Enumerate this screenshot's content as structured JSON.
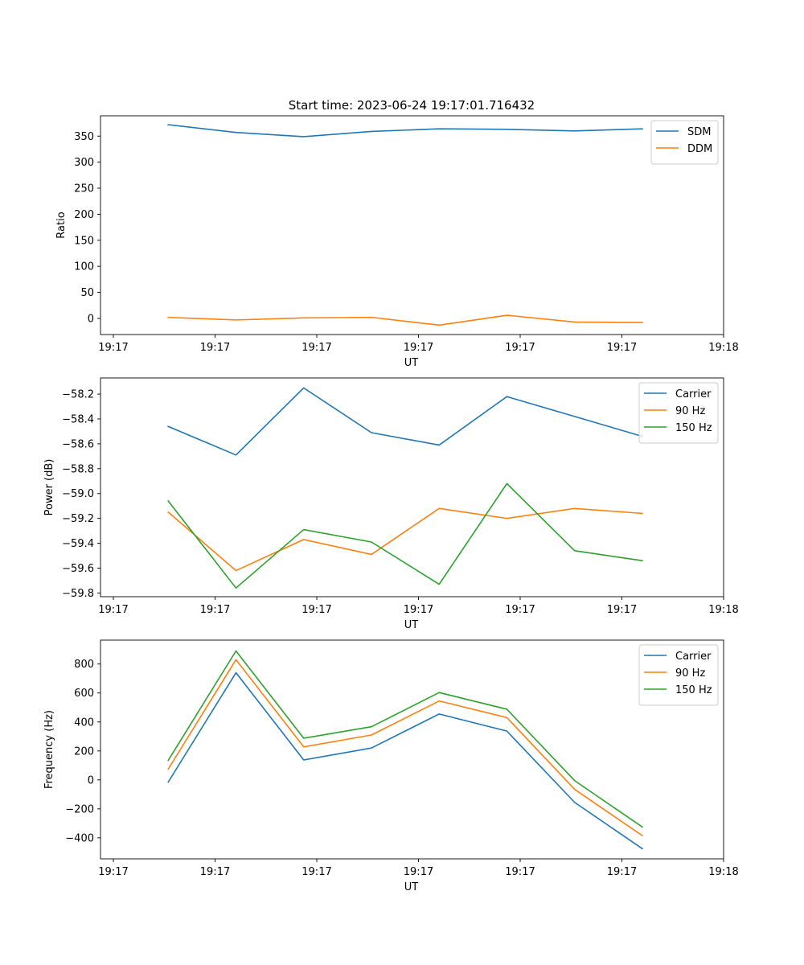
{
  "figure_title": "Start time: 2023-06-24 19:17:01.716432",
  "chart_data": [
    {
      "type": "line",
      "xlabel": "UT",
      "ylabel": "Ratio",
      "x_ticks": [
        "19:17",
        "19:17",
        "19:17",
        "19:17",
        "19:17",
        "19:17",
        "19:18"
      ],
      "x": [
        1,
        2,
        3,
        4,
        5,
        6,
        7,
        8
      ],
      "xlim": [
        0,
        9.2
      ],
      "ylim": [
        -31,
        389
      ],
      "y_ticks": [
        0,
        50,
        100,
        150,
        200,
        250,
        300,
        350
      ],
      "y_tick_labels": [
        "0",
        "50",
        "100",
        "150",
        "200",
        "250",
        "300",
        "350"
      ],
      "legend_position": "top-right",
      "series": [
        {
          "name": "SDM",
          "color": "#1f77b4",
          "values": [
            372,
            357,
            349,
            359,
            364,
            363,
            360,
            364
          ]
        },
        {
          "name": "DDM",
          "color": "#ff7f0e",
          "values": [
            2,
            -3,
            1,
            2,
            -13,
            6,
            -7,
            -8
          ]
        }
      ]
    },
    {
      "type": "line",
      "xlabel": "UT",
      "ylabel": "Power (dB)",
      "x_ticks": [
        "19:17",
        "19:17",
        "19:17",
        "19:17",
        "19:17",
        "19:17",
        "19:18"
      ],
      "x": [
        1,
        2,
        3,
        4,
        5,
        6,
        7,
        8
      ],
      "xlim": [
        0,
        9.2
      ],
      "ylim": [
        -59.83,
        -58.07
      ],
      "y_ticks": [
        -59.8,
        -59.6,
        -59.4,
        -59.2,
        -59.0,
        -58.8,
        -58.6,
        -58.4,
        -58.2
      ],
      "y_tick_labels": [
        "−59.8",
        "−59.6",
        "−59.4",
        "−59.2",
        "−59.0",
        "−58.8",
        "−58.6",
        "−58.4",
        "−58.2"
      ],
      "legend_position": "top-right",
      "series": [
        {
          "name": "Carrier",
          "color": "#1f77b4",
          "values": [
            -58.46,
            -58.69,
            -58.15,
            -58.51,
            -58.61,
            -58.22,
            -58.38,
            -58.54
          ]
        },
        {
          "name": "90 Hz",
          "color": "#ff7f0e",
          "values": [
            -59.15,
            -59.62,
            -59.37,
            -59.49,
            -59.12,
            -59.2,
            -59.12,
            -59.16
          ]
        },
        {
          "name": "150 Hz",
          "color": "#2ca02c",
          "values": [
            -59.06,
            -59.76,
            -59.29,
            -59.39,
            -59.73,
            -58.92,
            -59.46,
            -59.54
          ]
        }
      ]
    },
    {
      "type": "line",
      "xlabel": "UT",
      "ylabel": "Frequency (Hz)",
      "x_ticks": [
        "19:17",
        "19:17",
        "19:17",
        "19:17",
        "19:17",
        "19:17",
        "19:18"
      ],
      "x": [
        1,
        2,
        3,
        4,
        5,
        6,
        7,
        8
      ],
      "xlim": [
        0,
        9.2
      ],
      "ylim": [
        -545,
        965
      ],
      "y_ticks": [
        -400,
        -200,
        0,
        200,
        400,
        600,
        800
      ],
      "y_tick_labels": [
        "−400",
        "−200",
        "0",
        "200",
        "400",
        "600",
        "800"
      ],
      "legend_position": "top-right",
      "series": [
        {
          "name": "Carrier",
          "color": "#1f77b4",
          "values": [
            -15,
            740,
            138,
            220,
            455,
            337,
            -155,
            -475
          ]
        },
        {
          "name": "90 Hz",
          "color": "#ff7f0e",
          "values": [
            75,
            830,
            228,
            310,
            545,
            430,
            -65,
            -385
          ]
        },
        {
          "name": "150 Hz",
          "color": "#2ca02c",
          "values": [
            135,
            890,
            288,
            367,
            603,
            488,
            -5,
            -325
          ]
        }
      ]
    }
  ]
}
